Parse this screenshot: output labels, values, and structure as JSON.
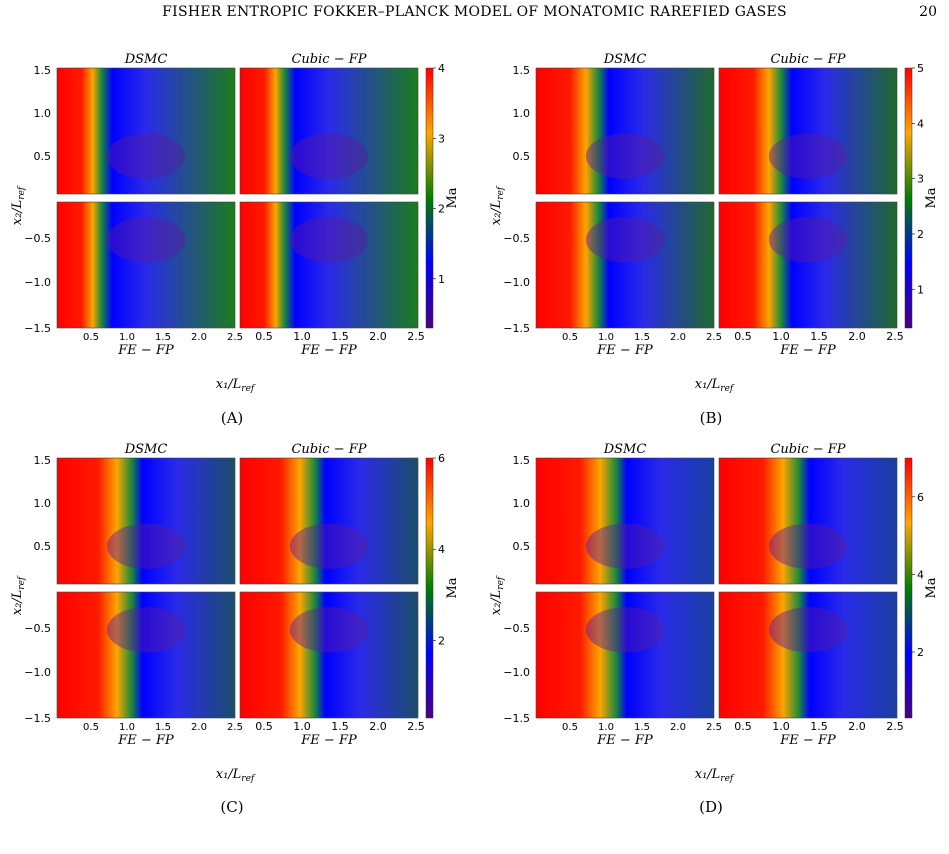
{
  "header": {
    "title": "FISHER ENTROPIC FOKKER–PLANCK MODEL OF MONATOMIC RAREFIED GASES",
    "page_number": "20"
  },
  "colormap": [
    "#4b0082",
    "#0000ff",
    "#008000",
    "#ffa500",
    "#ff0000"
  ],
  "panels": [
    {
      "caption": "(A)",
      "titles": [
        "DSMC",
        "Cubic − FP"
      ],
      "bottom_label": "FE − FP",
      "xlabel": "x₁/L",
      "xlabel_sub": "ref",
      "ylabel": "x₂/L",
      "ylabel_sub": "ref",
      "yticks_top": [
        "1.5",
        "1.0",
        "0.5"
      ],
      "yticks_bottom": [
        "−0.5",
        "−1.0",
        "−1.5"
      ],
      "xticks_left": [
        "0.5",
        "1.0",
        "1.5",
        "2.0",
        "2.5"
      ],
      "xticks_right": [
        "0.5",
        "1.0",
        "1.5",
        "2.0",
        "2.5"
      ],
      "colorbar": {
        "label": "Ma",
        "ticks": [
          "1",
          "2",
          "3",
          "4"
        ],
        "min": 0.3,
        "max": 4.0
      },
      "fields": {
        "shock_x": 0.25,
        "far_color": "#1b7d1b",
        "far_color_dsmc": "#1c7f1c"
      }
    },
    {
      "caption": "(B)",
      "titles": [
        "DSMC",
        "Cubic − FP"
      ],
      "bottom_label": "FE − FP",
      "xlabel": "x₁/L",
      "xlabel_sub": "ref",
      "ylabel": "x₂/L",
      "ylabel_sub": "ref",
      "yticks_top": [
        "1.5",
        "1.0",
        "0.5"
      ],
      "yticks_bottom": [
        "−0.5",
        "−1.0",
        "−1.5"
      ],
      "xticks_left": [
        "0.5",
        "1.0",
        "1.5",
        "2.0",
        "2.5"
      ],
      "xticks_right": [
        "0.5",
        "1.0",
        "1.5",
        "2.0",
        "2.5"
      ],
      "colorbar": {
        "label": "Ma",
        "ticks": [
          "1",
          "2",
          "3",
          "4",
          "5"
        ],
        "min": 0.3,
        "max": 5.0
      },
      "fields": {
        "shock_x": 0.35,
        "far_color": "#1e6a2c",
        "far_color_dsmc": "#1d5e3a"
      }
    },
    {
      "caption": "(C)",
      "titles": [
        "DSMC",
        "Cubic − FP"
      ],
      "bottom_label": "FE − FP",
      "xlabel": "x₁/L",
      "xlabel_sub": "ref",
      "ylabel": "x₂/L",
      "ylabel_sub": "ref",
      "yticks_top": [
        "1.5",
        "1.0",
        "0.5"
      ],
      "yticks_bottom": [
        "−0.5",
        "−1.0",
        "−1.5"
      ],
      "xticks_left": [
        "0.5",
        "1.0",
        "1.5",
        "2.0",
        "2.5"
      ],
      "xticks_right": [
        "0.5",
        "1.0",
        "1.5",
        "2.0",
        "2.5"
      ],
      "colorbar": {
        "label": "Ma",
        "ticks": [
          "2",
          "4",
          "6"
        ],
        "min": 0.3,
        "max": 6.0
      },
      "fields": {
        "shock_x": 0.42,
        "far_color": "#1c4e6a",
        "far_color_dsmc": "#1c4a74"
      }
    },
    {
      "caption": "(D)",
      "titles": [
        "DSMC",
        "Cubic − FP"
      ],
      "bottom_label": "FE − FP",
      "xlabel": "x₁/L",
      "xlabel_sub": "ref",
      "ylabel": "x₂/L",
      "ylabel_sub": "ref",
      "yticks_top": [
        "1.5",
        "1.0",
        "0.5"
      ],
      "yticks_bottom": [
        "−0.5",
        "−1.0",
        "−1.5"
      ],
      "xticks_left": [
        "0.5",
        "1.0",
        "1.5",
        "2.0",
        "2.5"
      ],
      "xticks_right": [
        "0.5",
        "1.0",
        "1.5",
        "2.0",
        "2.5"
      ],
      "colorbar": {
        "label": "Ma",
        "ticks": [
          "2",
          "4",
          "6"
        ],
        "min": 0.3,
        "max": 7.0
      },
      "fields": {
        "shock_x": 0.45,
        "far_color": "#1a40a0",
        "far_color_dsmc": "#1a3fb0"
      }
    }
  ]
}
